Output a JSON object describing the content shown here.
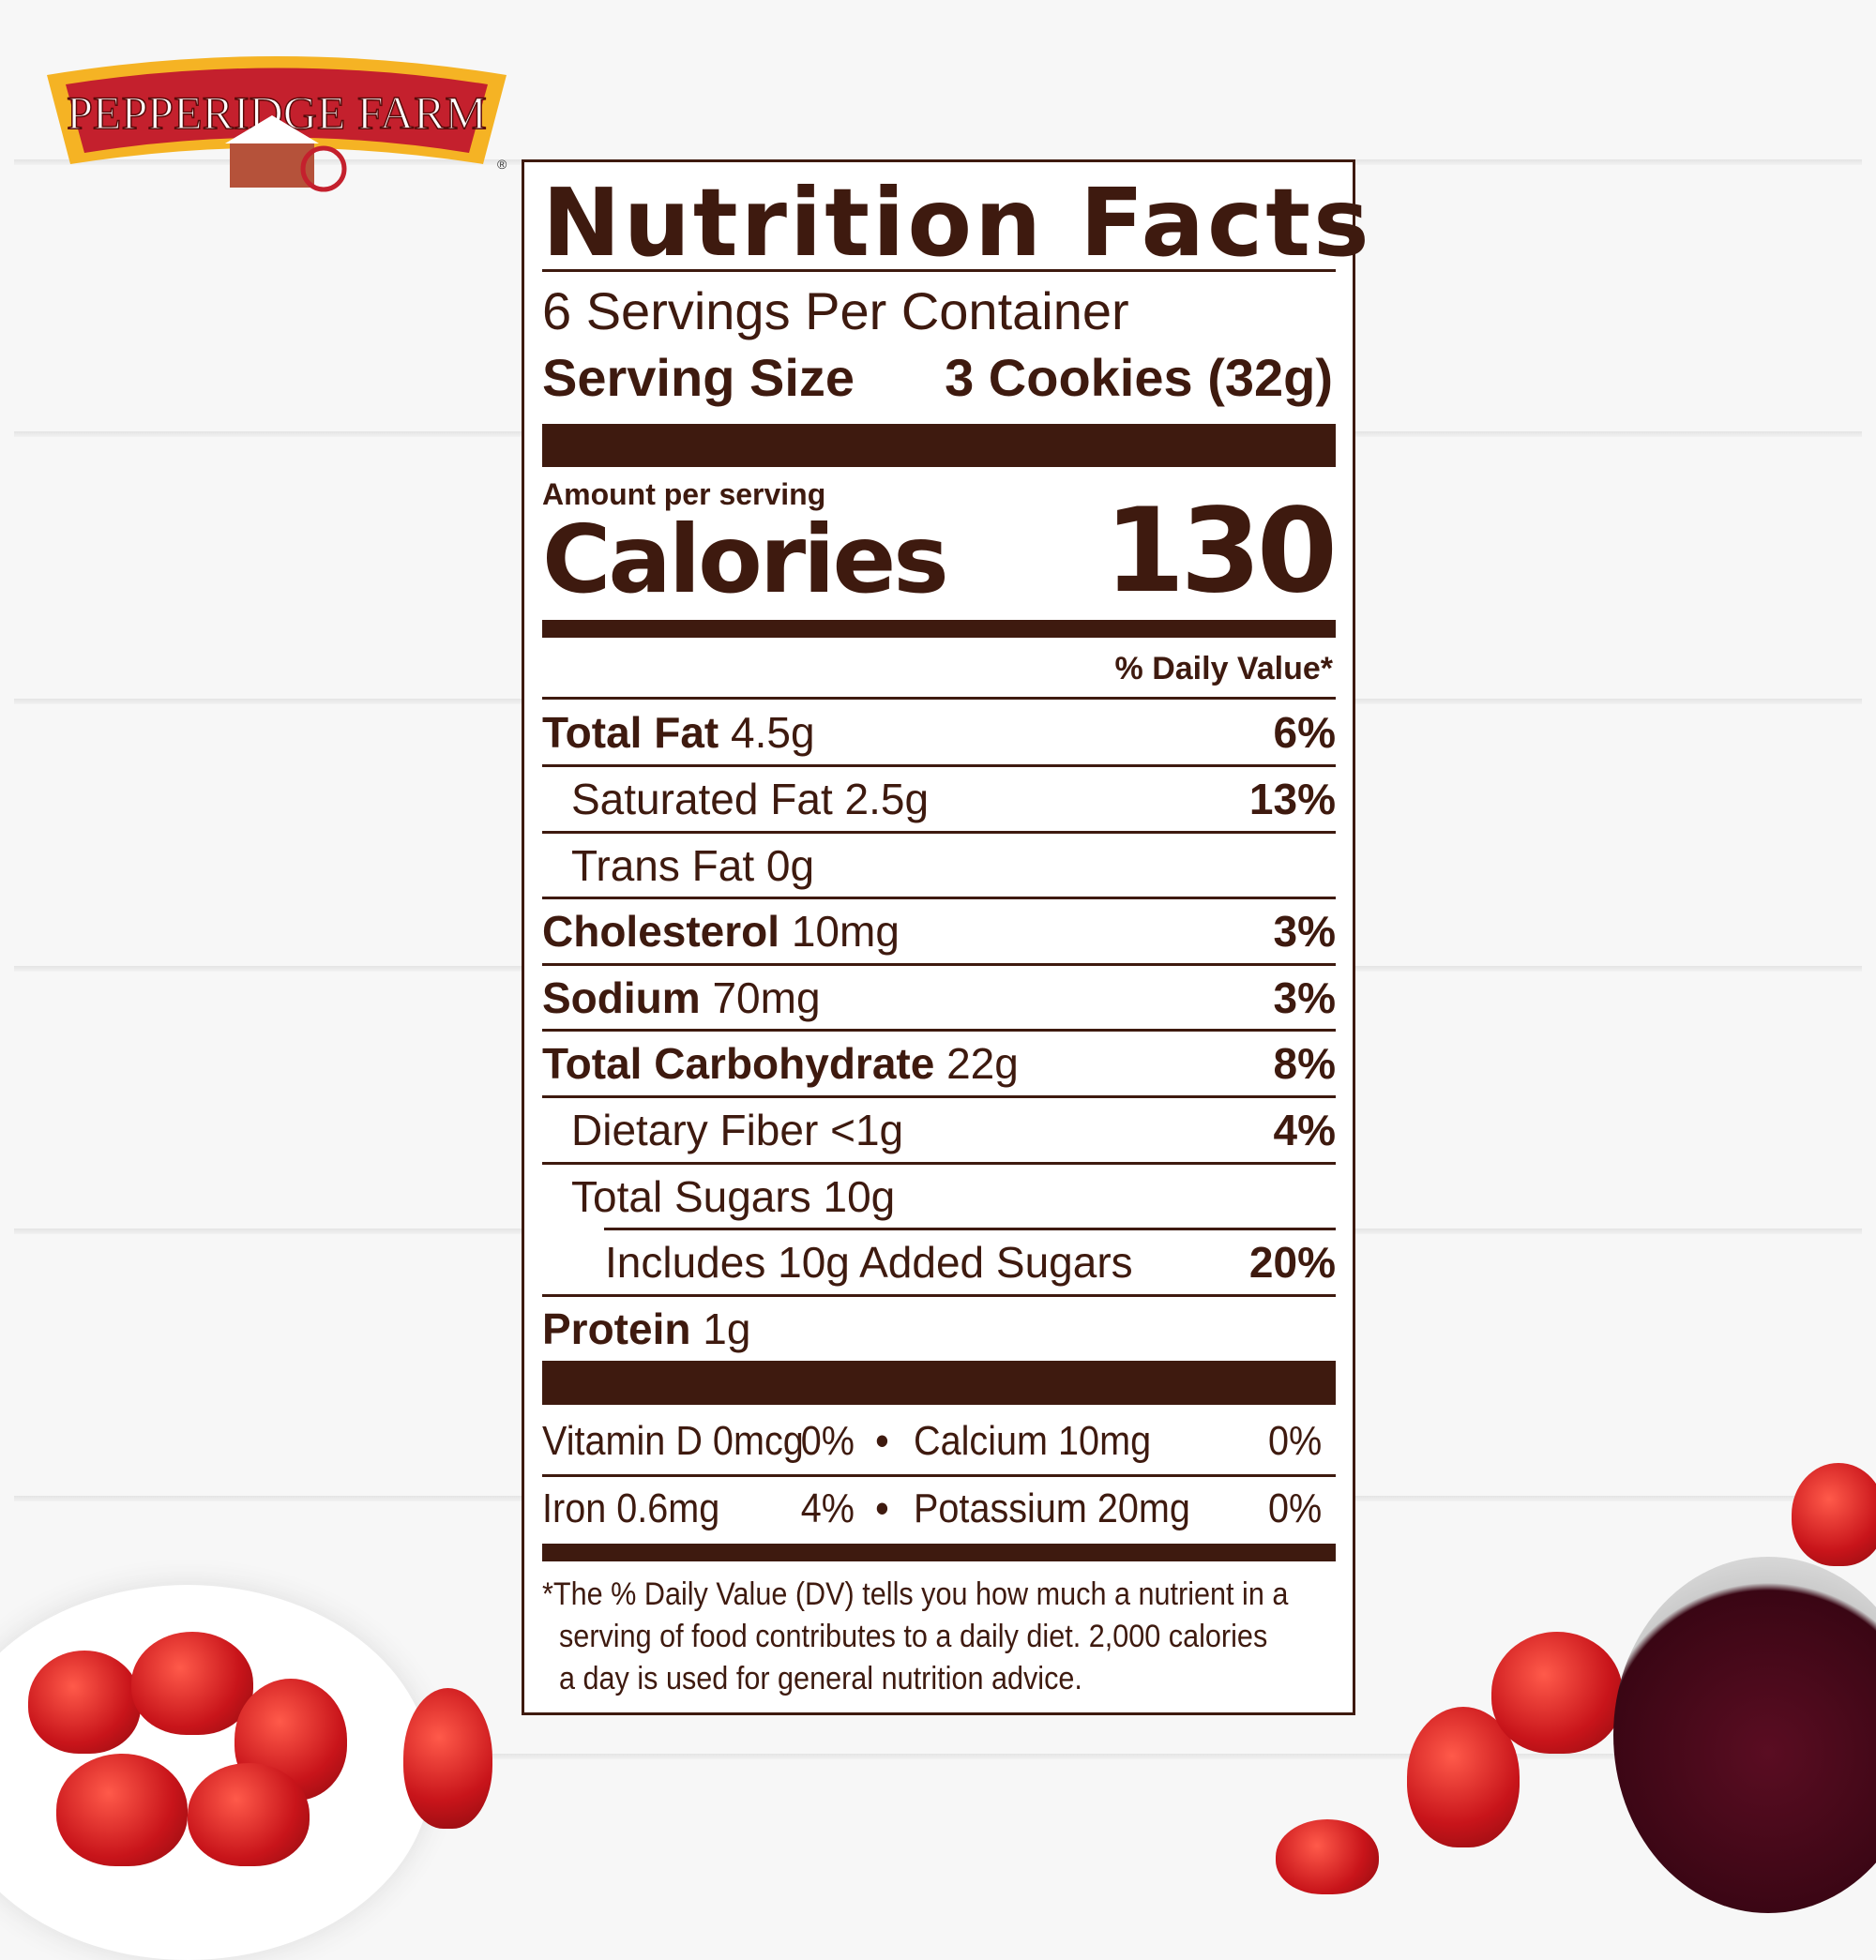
{
  "brand": {
    "logo_text": "PEPPERIDGE FARM",
    "registered_mark": "®",
    "colors": {
      "banner_red": "#c4202d",
      "banner_gold": "#f5b324"
    }
  },
  "label": {
    "title": "Nutrition Facts",
    "servings_per_container": "6 Servings Per Container",
    "serving_size_label": "Serving Size",
    "serving_size_value": "3 Cookies (32g)",
    "amount_per_serving": "Amount per serving",
    "calories_label": "Calories",
    "calories_value": "130",
    "daily_value_header": "% Daily Value*",
    "nutrients": [
      {
        "name": "Total Fat",
        "amount": "4.5g",
        "dv": "6%"
      },
      {
        "name": "Saturated Fat",
        "amount": "2.5g",
        "dv": "13%"
      },
      {
        "name": "Trans Fat",
        "amount": "0g",
        "dv": ""
      },
      {
        "name": "Cholesterol",
        "amount": "10mg",
        "dv": "3%"
      },
      {
        "name": "Sodium",
        "amount": "70mg",
        "dv": "3%"
      },
      {
        "name": "Total Carbohydrate",
        "amount": "22g",
        "dv": "8%"
      },
      {
        "name": "Dietary Fiber",
        "amount": "<1g",
        "dv": "4%"
      },
      {
        "name": "Total Sugars",
        "amount": "10g",
        "dv": ""
      },
      {
        "name": "Includes 10g Added Sugars",
        "amount": "",
        "dv": "20%"
      },
      {
        "name": "Protein",
        "amount": "1g",
        "dv": ""
      }
    ],
    "vitamins": [
      {
        "left": "Vitamin D 0mcg",
        "left_dv": "0%",
        "right": "Calcium 10mg",
        "right_dv": "0%"
      },
      {
        "left": "Iron 0.6mg",
        "left_dv": "4%",
        "right": "Potassium 20mg",
        "right_dv": "0%"
      }
    ],
    "bullet": "•",
    "footnote": [
      "*The % Daily Value (DV) tells you how much a nutrient in a",
      "serving of food contributes to a daily diet. 2,000 calories",
      "a day is used for general nutrition advice."
    ],
    "text_color": "#3e1a0f"
  }
}
